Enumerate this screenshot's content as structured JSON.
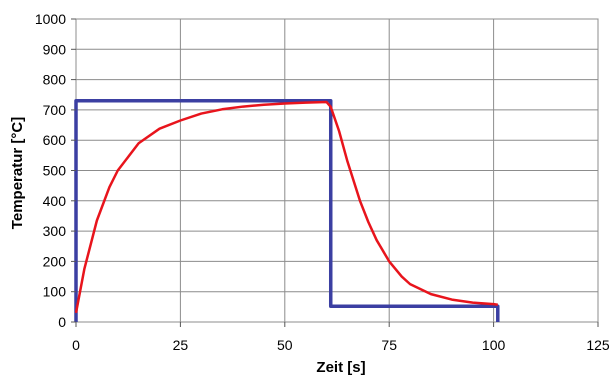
{
  "chart_data": {
    "type": "line",
    "xlabel": "Zeit [s]",
    "ylabel": "Temperatur [°C]",
    "xlim": [
      0,
      125
    ],
    "ylim": [
      0,
      1000
    ],
    "x_ticks": [
      0,
      25,
      50,
      75,
      100,
      125
    ],
    "y_ticks": [
      0,
      100,
      200,
      300,
      400,
      500,
      600,
      700,
      800,
      900,
      1000
    ],
    "grid": true,
    "series": [
      {
        "color": "#e8141c",
        "x": [
          0,
          2,
          5,
          8,
          10,
          15,
          20,
          25,
          30,
          35,
          40,
          45,
          50,
          55,
          60,
          61,
          63,
          65,
          68,
          70,
          72,
          75,
          78,
          80,
          85,
          90,
          95,
          100,
          101
        ],
        "y": [
          30,
          175,
          335,
          445,
          500,
          590,
          638,
          665,
          688,
          702,
          711,
          717,
          721,
          724,
          726,
          710,
          630,
          530,
          400,
          330,
          270,
          200,
          150,
          125,
          92,
          74,
          64,
          59,
          57
        ]
      },
      {
        "color": "#3b3fa2",
        "x": [
          0,
          0,
          61,
          61,
          101,
          101
        ],
        "y": [
          0,
          730,
          730,
          52,
          52,
          0
        ]
      }
    ]
  }
}
